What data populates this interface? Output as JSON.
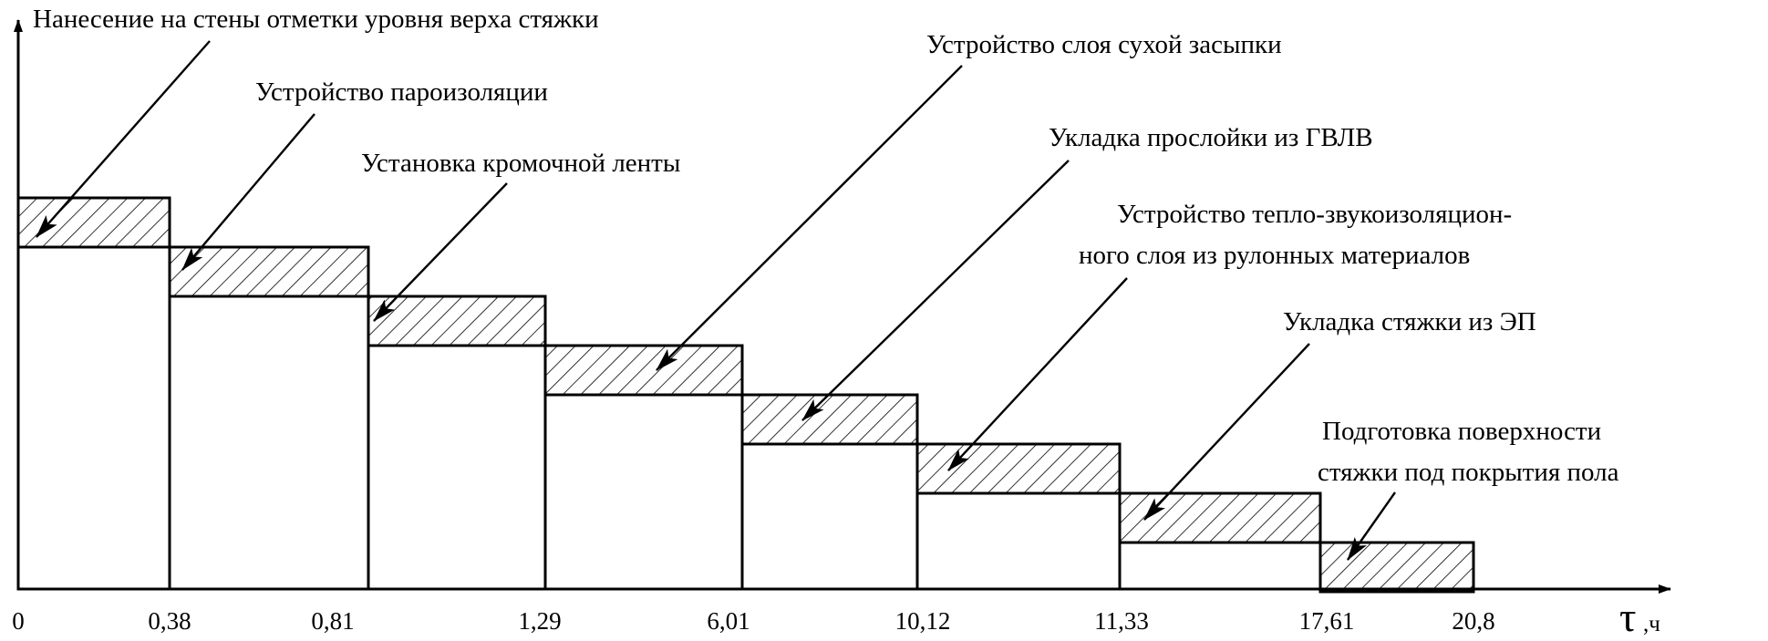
{
  "chart_data": {
    "type": "bar",
    "title": "",
    "xlabel": "τ",
    "xlabel_unit": ",ч",
    "ylabel": "",
    "x_ticks": [
      "0",
      "0,38",
      "0,81",
      "1,29",
      "6,01",
      "10,12",
      "11,33",
      "17,61",
      "20,8"
    ],
    "grid": false,
    "legend": "none",
    "stroke_color": "#000000",
    "fill_color": "#ffffff",
    "stages": [
      {
        "label_lines": [
          "Нанесение на стены отметки уровня верха стяжки"
        ]
      },
      {
        "label_lines": [
          "Устройство пароизоляции"
        ]
      },
      {
        "label_lines": [
          "Установка кромочной ленты"
        ]
      },
      {
        "label_lines": [
          "Устройство слоя сухой засыпки"
        ]
      },
      {
        "label_lines": [
          "Укладка прослойки из ГВЛВ"
        ]
      },
      {
        "label_lines": [
          "Устройство тепло-звукоизоляцион-",
          "ного слоя из рулонных материалов"
        ]
      },
      {
        "label_lines": [
          "Укладка стяжки из ЭП"
        ]
      },
      {
        "label_lines": [
          "Подготовка поверхности",
          "стяжки под покрытия пола"
        ]
      }
    ]
  }
}
